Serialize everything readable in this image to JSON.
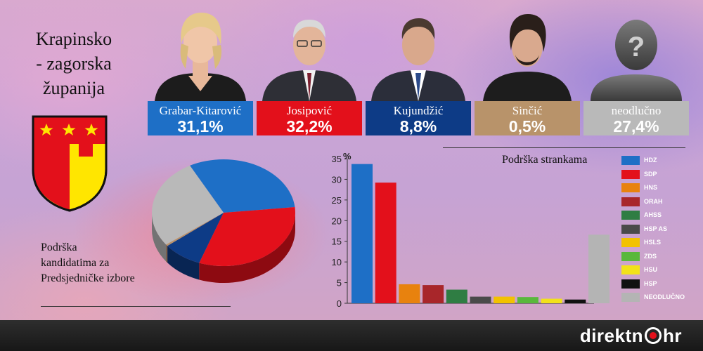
{
  "region": {
    "line1": "Krapinsko",
    "line2": "- zagorska",
    "line3": "županija"
  },
  "candidates": [
    {
      "name": "Grabar-Kitarović",
      "percent": "31,1%",
      "value": 31.1,
      "color": "#1e6fc6"
    },
    {
      "name": "Josipović",
      "percent": "32,2%",
      "value": 32.2,
      "color": "#e3101b"
    },
    {
      "name": "Kujundžić",
      "percent": "8,8%",
      "value": 8.8,
      "color": "#0d3b86"
    },
    {
      "name": "Sinčić",
      "percent": "0,5%",
      "value": 0.5,
      "color": "#b8936a"
    },
    {
      "name": "neodlučno",
      "percent": "27,4%",
      "value": 27.4,
      "color": "#b9b9b9"
    }
  ],
  "unknown_mark": "?",
  "pie_title": {
    "line1": "Podrška",
    "line2": "kandidatima za",
    "line3": "Predsjedničke izbore"
  },
  "brand": {
    "part1": "direktn",
    "part2": "hr"
  },
  "chart_data": [
    {
      "type": "pie",
      "title": "Podrška kandidatima za Predsjedničke izbore",
      "labels": [
        "Grabar-Kitarović",
        "Josipović",
        "Kujundžić",
        "Sinčić",
        "neodlučno"
      ],
      "values": [
        31.1,
        32.2,
        8.8,
        0.5,
        27.4
      ],
      "colors": [
        "#1e6fc6",
        "#e3101b",
        "#0d3b86",
        "#b8936a",
        "#b9b9b9"
      ]
    },
    {
      "type": "bar",
      "title": "Podrška strankama",
      "ylabel": "%",
      "ylim": [
        0,
        35
      ],
      "yticks": [
        0,
        5,
        10,
        15,
        20,
        25,
        30,
        35
      ],
      "ytick_labels": [
        "0",
        "5",
        "10",
        "15",
        "20",
        "25",
        "30",
        "35"
      ],
      "categories": [
        "HDZ",
        "SDP",
        "HNS",
        "ORAH",
        "AHSS",
        "HSP AS",
        "HSLS",
        "ZDS",
        "HSU",
        "HSP",
        "NEODLUČNO"
      ],
      "values": [
        33.7,
        29.2,
        4.6,
        4.4,
        3.3,
        1.6,
        1.6,
        1.5,
        1.1,
        0.9,
        16.6
      ],
      "colors": [
        "#1e6fc6",
        "#e3101b",
        "#e8820e",
        "#a8262a",
        "#2f7d43",
        "#4a4a4a",
        "#f2c200",
        "#59b83c",
        "#f2e21a",
        "#111111",
        "#b4b4b4"
      ],
      "legend_position": "right"
    }
  ]
}
